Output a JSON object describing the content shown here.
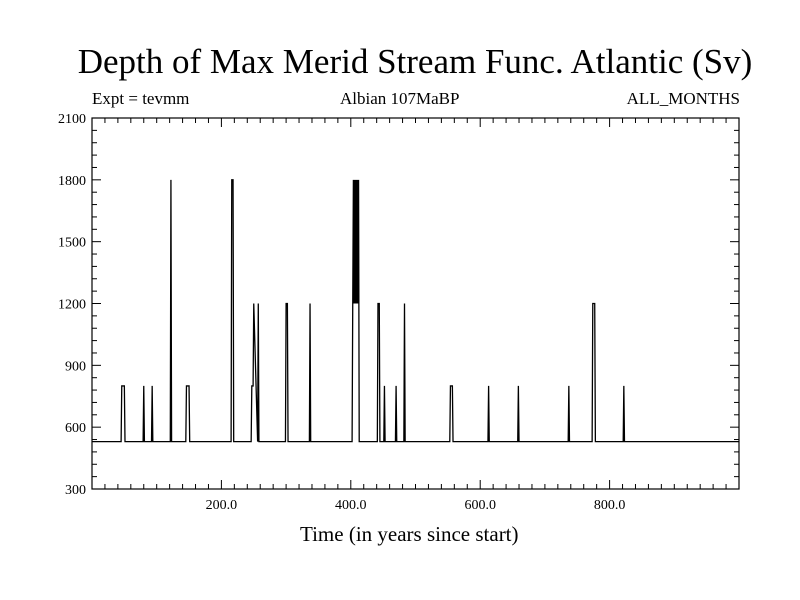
{
  "header": {
    "title": "Depth of Max Merid Stream Func. Atlantic (Sv)",
    "expt": "Expt = tevmm",
    "period": "Albian   107MaBP",
    "months": "ALL_MONTHS"
  },
  "chart_data": {
    "type": "line",
    "title": "Depth of Max Merid Stream Func. Atlantic (Sv)",
    "xlabel": "Time (in years since start)",
    "ylabel": "",
    "xlim": [
      0,
      1000
    ],
    "ylim": [
      300,
      2100
    ],
    "xticks": [
      200,
      400,
      600,
      800
    ],
    "xtick_labels": [
      "200.0",
      "400.0",
      "600.0",
      "800.0"
    ],
    "yticks": [
      300,
      600,
      900,
      1200,
      1500,
      1800,
      2100
    ],
    "ytick_labels": [
      "300",
      "600",
      "900",
      "1200",
      "1500",
      "1800",
      "2100"
    ],
    "grid": false,
    "baseline": 530,
    "series": [
      {
        "color": "#000000",
        "x": [
          0,
          45,
          46,
          50,
          51,
          79,
          80,
          81,
          92,
          93,
          94,
          121,
          122,
          123,
          145,
          146,
          150,
          151,
          215,
          216,
          218,
          219,
          246,
          247,
          249,
          250,
          256,
          257,
          258,
          299,
          300,
          302,
          303,
          336,
          337,
          338,
          402,
          403,
          404,
          405,
          406,
          407,
          408,
          409,
          410,
          411,
          412,
          413,
          441,
          442,
          444,
          445,
          451,
          452,
          453,
          469,
          470,
          471,
          482,
          483,
          484,
          553,
          554,
          557,
          558,
          612,
          613,
          614,
          658,
          659,
          660,
          736,
          737,
          738,
          773,
          774,
          777,
          778,
          821,
          822,
          823,
          1000
        ],
        "y": [
          530,
          530,
          800,
          800,
          530,
          530,
          800,
          530,
          530,
          800,
          530,
          530,
          1800,
          530,
          530,
          800,
          800,
          530,
          530,
          1800,
          1800,
          530,
          530,
          800,
          800,
          1200,
          530,
          1200,
          530,
          530,
          1200,
          1200,
          530,
          530,
          1200,
          530,
          530,
          1200,
          1800,
          1200,
          1800,
          1200,
          1800,
          1200,
          1800,
          1200,
          1800,
          530,
          530,
          1200,
          1200,
          530,
          530,
          800,
          530,
          530,
          800,
          530,
          530,
          1200,
          530,
          530,
          800,
          800,
          530,
          530,
          800,
          530,
          530,
          800,
          530,
          530,
          800,
          530,
          530,
          1200,
          1200,
          530,
          530,
          800,
          530,
          530
        ]
      }
    ]
  }
}
